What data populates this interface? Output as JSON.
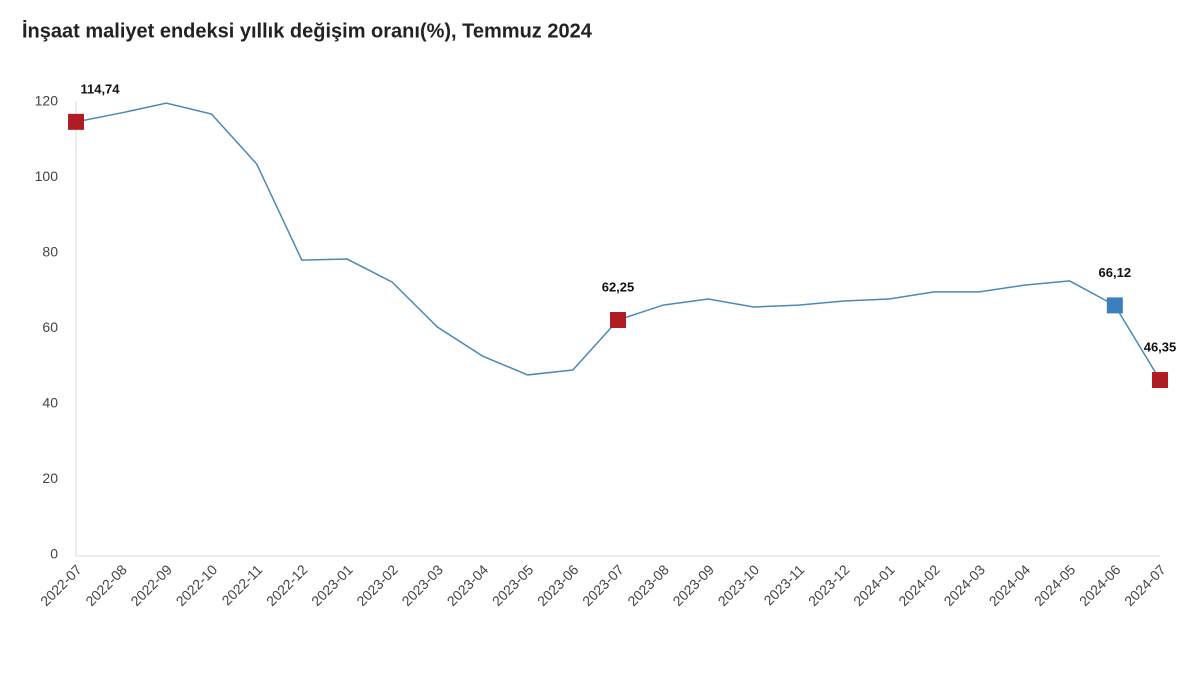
{
  "chart_data": {
    "type": "line",
    "title": "İnşaat maliyet endeksi yıllık değişim oranı(%), Temmuz 2024",
    "categories": [
      "2022-07",
      "2022-08",
      "2022-09",
      "2022-10",
      "2022-11",
      "2022-12",
      "2023-01",
      "2023-02",
      "2023-03",
      "2023-04",
      "2023-05",
      "2023-06",
      "2023-07",
      "2023-08",
      "2023-09",
      "2023-10",
      "2023-11",
      "2023-12",
      "2024-01",
      "2024-02",
      "2024-03",
      "2024-04",
      "2024-05",
      "2024-06",
      "2024-07"
    ],
    "values": [
      114.74,
      117.1,
      119.7,
      116.8,
      103.6,
      78.1,
      78.4,
      72.3,
      60.4,
      52.7,
      47.7,
      49.0,
      62.25,
      66.2,
      67.8,
      65.7,
      66.2,
      67.3,
      67.8,
      69.7,
      69.7,
      71.5,
      72.6,
      66.12,
      46.35
    ],
    "value_labels": [
      "114,74",
      null,
      null,
      null,
      null,
      null,
      null,
      null,
      null,
      null,
      null,
      null,
      "62,25",
      null,
      null,
      null,
      null,
      null,
      null,
      null,
      null,
      null,
      null,
      "66,12",
      "46,35"
    ],
    "marker_colors": [
      "#b01c24",
      null,
      null,
      null,
      null,
      null,
      null,
      null,
      null,
      null,
      null,
      null,
      "#b01c24",
      null,
      null,
      null,
      null,
      null,
      null,
      null,
      null,
      null,
      null,
      "#3a7fc0",
      "#b01c24"
    ],
    "color": "#4a8ab8",
    "ylim": [
      0,
      120
    ],
    "yticks": [
      0,
      20,
      40,
      60,
      80,
      100,
      120
    ],
    "grid": false
  }
}
